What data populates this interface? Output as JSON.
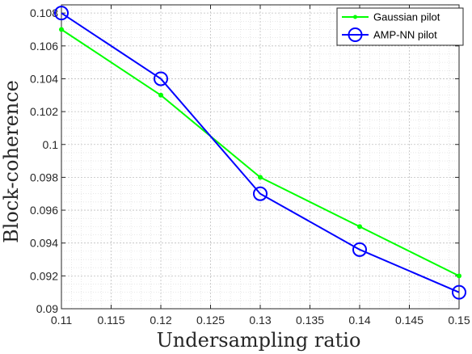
{
  "chart_data": {
    "type": "line",
    "x": [
      0.11,
      0.12,
      0.13,
      0.14,
      0.15
    ],
    "series": [
      {
        "name": "Gaussian pilot",
        "values": [
          0.107,
          0.103,
          0.098,
          0.095,
          0.092
        ],
        "color": "#00ff00",
        "marker": "dot"
      },
      {
        "name": "AMP-NN pilot",
        "values": [
          0.108,
          0.104,
          0.097,
          0.0936,
          0.091
        ],
        "color": "#0000ff",
        "marker": "circle"
      }
    ],
    "xlabel": "Undersampling ratio",
    "ylabel": "Block-coherence",
    "xlim": [
      0.11,
      0.15
    ],
    "ylim": [
      0.09,
      0.1085
    ],
    "xticks": [
      "0.11",
      "0.115",
      "0.12",
      "0.125",
      "0.13",
      "0.135",
      "0.14",
      "0.145",
      "0.15"
    ],
    "yticks": [
      "0.09",
      "0.092",
      "0.094",
      "0.096",
      "0.098",
      "0.1",
      "0.102",
      "0.104",
      "0.106",
      "0.108"
    ],
    "grid": "major and minor dotted",
    "legend_position": "top-right"
  }
}
